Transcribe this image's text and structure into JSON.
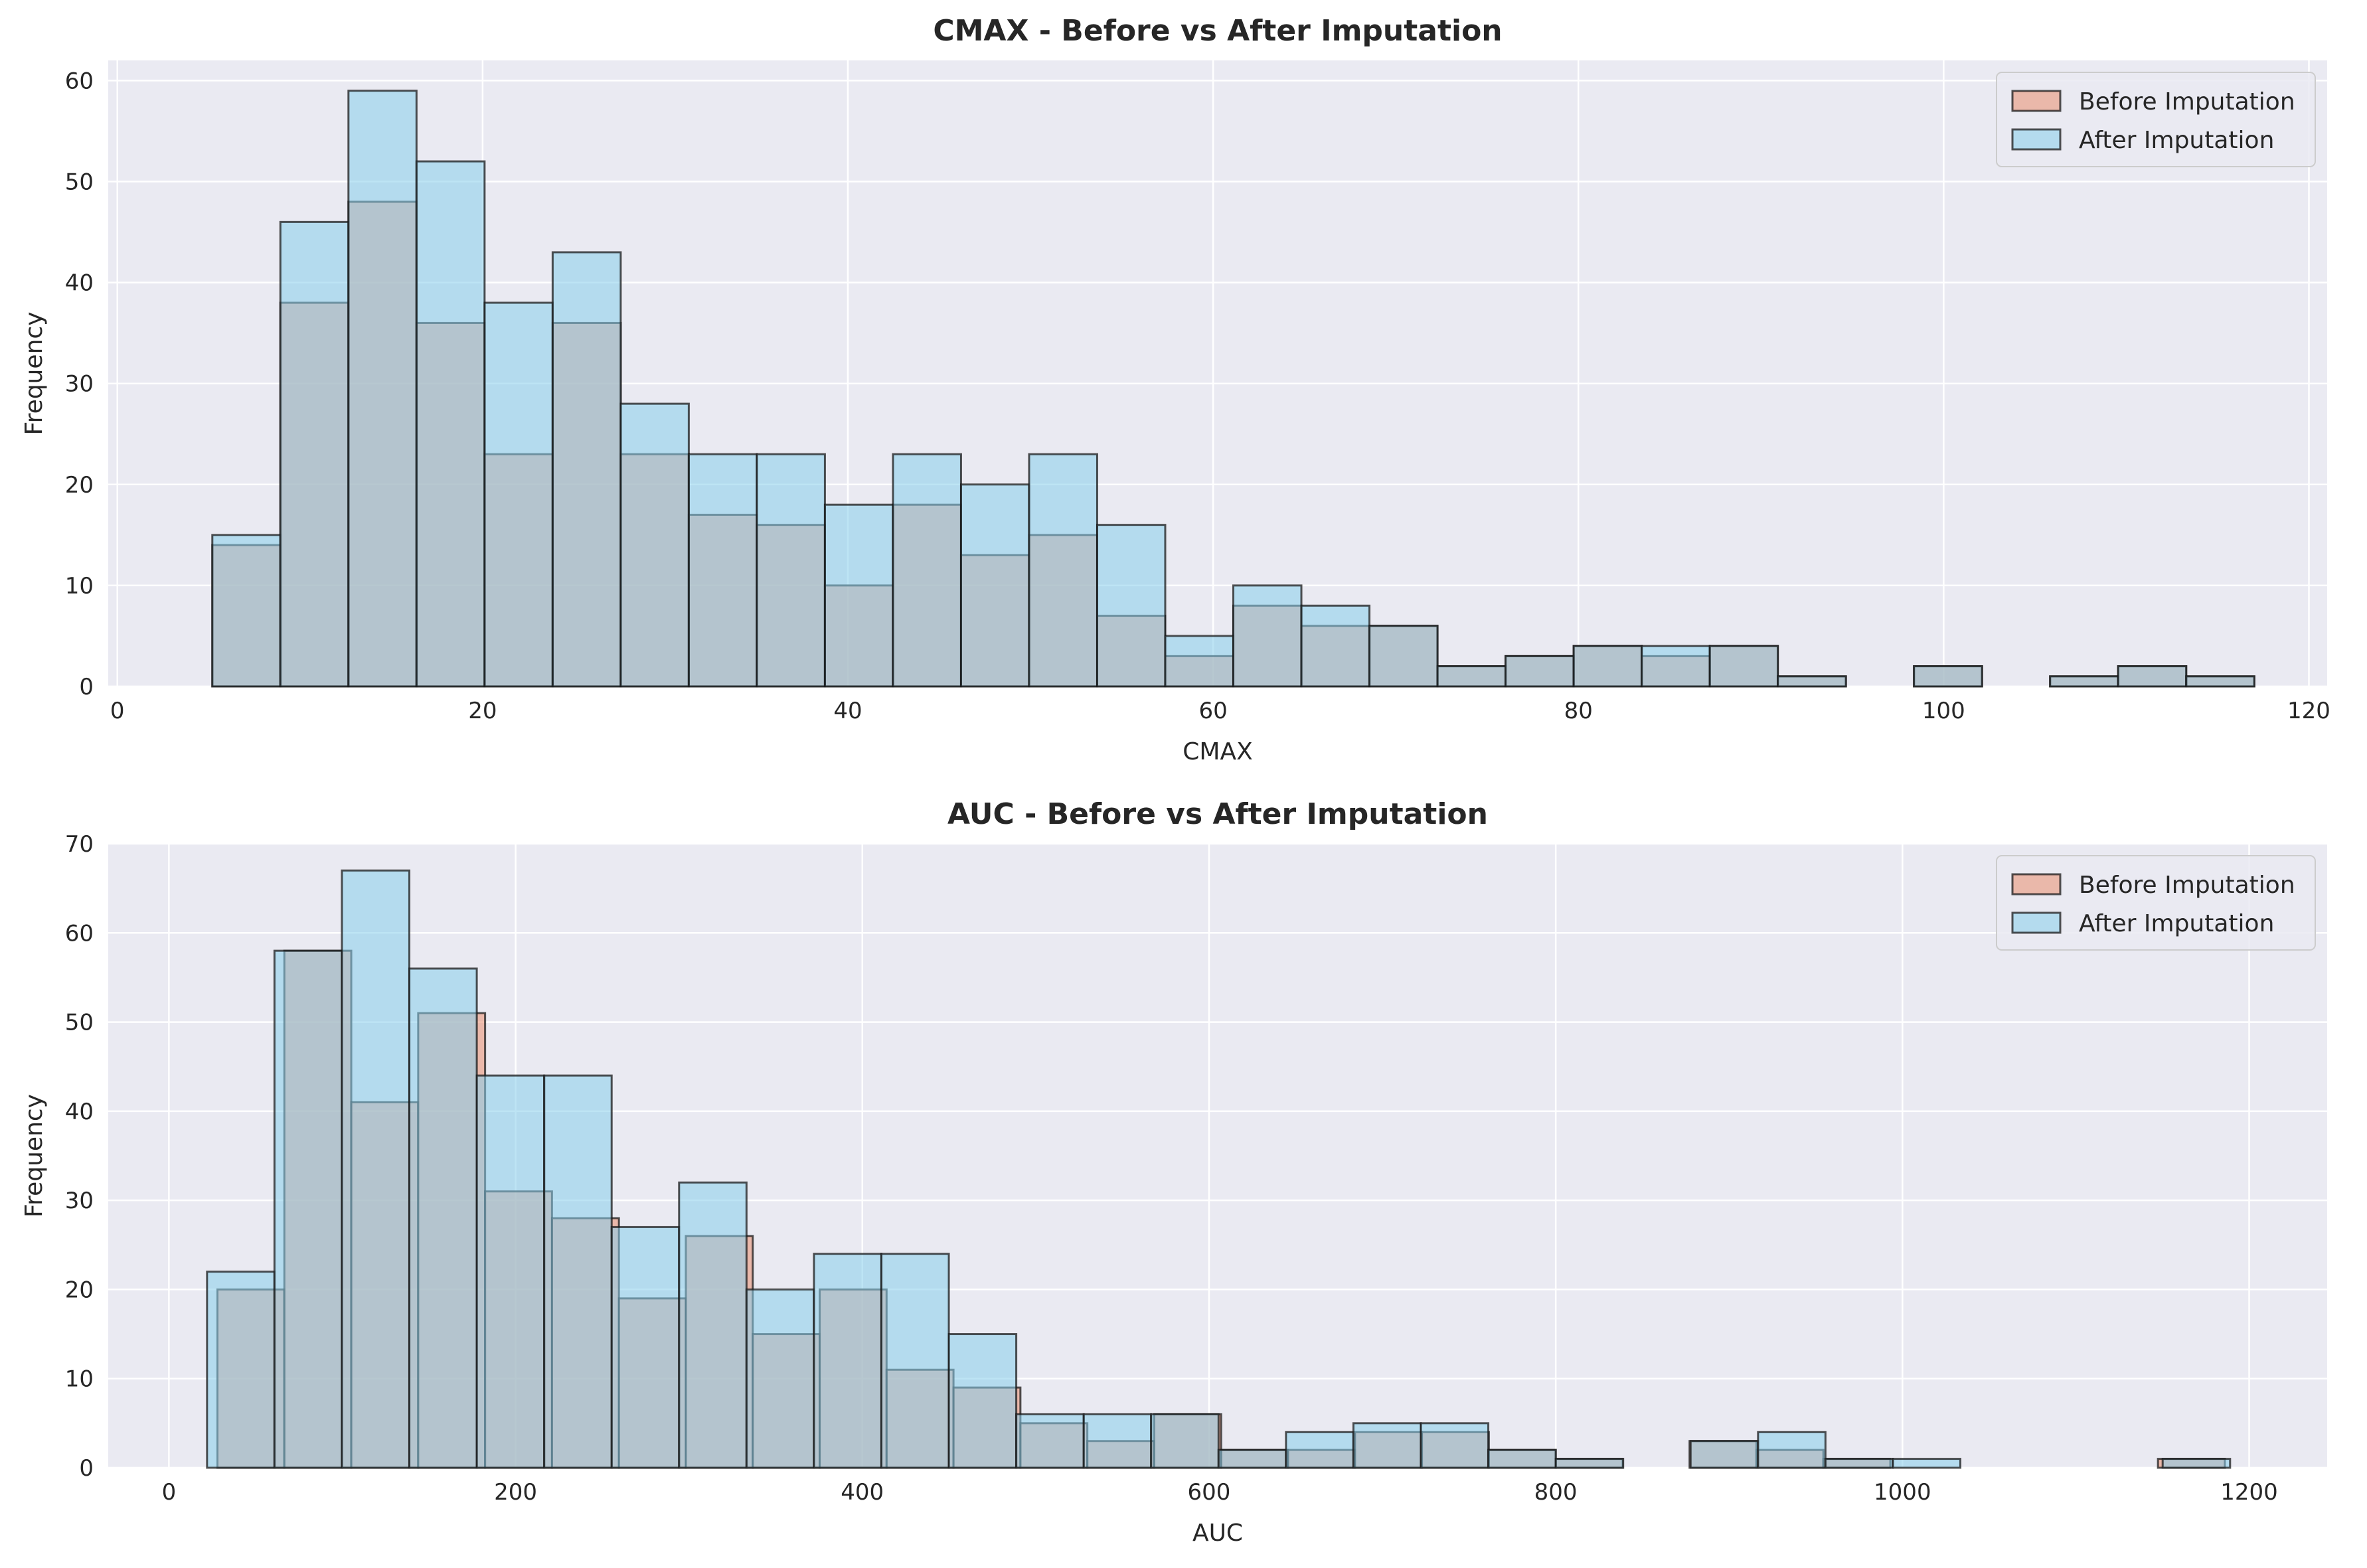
{
  "colors": {
    "background": "#eaeaf2",
    "grid": "#ffffff",
    "before": "#e9967a",
    "after": "#87ceeb",
    "edge": "#1a1a1a",
    "text": "#262626"
  },
  "chart_data": [
    {
      "type": "bar",
      "subtype": "histogram",
      "title": "CMAX - Before vs After Imputation",
      "xlabel": "CMAX",
      "ylabel": "Frequency",
      "xlim": [
        -0.5,
        121
      ],
      "ylim": [
        0,
        62
      ],
      "xticks": [
        0,
        20,
        40,
        60,
        80,
        100,
        120
      ],
      "yticks": [
        0,
        10,
        20,
        30,
        40,
        50,
        60
      ],
      "grid": true,
      "legend": {
        "position": "top-right",
        "entries": [
          "Before Imputation",
          "After Imputation"
        ]
      },
      "series": [
        {
          "name": "Before Imputation",
          "bin_start": 5.2,
          "bin_width": 3.727,
          "counts": [
            14,
            38,
            48,
            36,
            23,
            36,
            23,
            17,
            16,
            10,
            18,
            13,
            15,
            7,
            3,
            8,
            6,
            6,
            2,
            3,
            4,
            3,
            4,
            1,
            0,
            2,
            0,
            1,
            2,
            1
          ]
        },
        {
          "name": "After Imputation",
          "bin_start": 5.2,
          "bin_width": 3.727,
          "counts": [
            15,
            46,
            59,
            52,
            38,
            43,
            28,
            23,
            23,
            18,
            23,
            20,
            23,
            16,
            5,
            10,
            8,
            6,
            2,
            3,
            4,
            4,
            4,
            1,
            0,
            2,
            0,
            1,
            2,
            1
          ]
        }
      ]
    },
    {
      "type": "bar",
      "subtype": "histogram",
      "title": "AUC - Before vs After Imputation",
      "xlabel": "AUC",
      "ylabel": "Frequency",
      "xlim": [
        -35,
        1245
      ],
      "ylim": [
        0,
        70
      ],
      "xticks": [
        0,
        200,
        400,
        600,
        800,
        1000,
        1200
      ],
      "yticks": [
        0,
        10,
        20,
        30,
        40,
        50,
        60,
        70
      ],
      "grid": true,
      "legend": {
        "position": "top-right",
        "entries": [
          "Before Imputation",
          "After Imputation"
        ]
      },
      "series": [
        {
          "name": "Before Imputation",
          "bin_start": 28.0,
          "bin_width": 38.6,
          "counts": [
            20,
            58,
            41,
            51,
            31,
            28,
            19,
            26,
            15,
            20,
            11,
            9,
            5,
            3,
            6,
            2,
            2,
            4,
            4,
            2,
            1,
            0,
            3,
            2,
            1,
            0,
            0,
            0,
            0,
            1
          ]
        },
        {
          "name": "After Imputation",
          "bin_start": 22.0,
          "bin_width": 38.9,
          "counts": [
            22,
            58,
            67,
            56,
            44,
            44,
            27,
            32,
            20,
            24,
            24,
            15,
            6,
            6,
            6,
            2,
            4,
            5,
            5,
            2,
            1,
            0,
            3,
            4,
            1,
            1,
            0,
            0,
            0,
            1
          ]
        }
      ]
    }
  ]
}
